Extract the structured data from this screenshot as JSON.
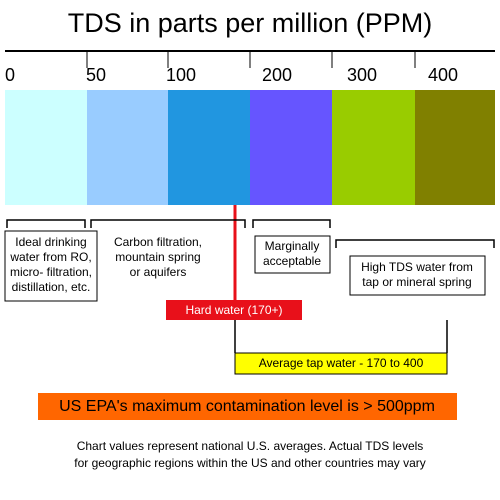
{
  "header": {
    "title": "TDS in parts per million (PPM)"
  },
  "scale": {
    "labels": [
      "0",
      "50",
      "100",
      "200",
      "300",
      "400"
    ]
  },
  "notes": {
    "ideal": [
      "Ideal drinking",
      "water from RO,",
      "micro- filtration,",
      "distillation, etc."
    ],
    "carbon": [
      "Carbon filtration,",
      "mountain spring",
      "or aquifers"
    ],
    "marginal": [
      "Marginally",
      "acceptable"
    ],
    "high": [
      "High TDS water from",
      "tap or mineral spring"
    ],
    "hard": "Hard water (170+)",
    "average": "Average tap water - 170 to 400",
    "epa": "US EPA's maximum contamination level is > 500ppm"
  },
  "footer": [
    "Chart values represent national U.S. averages. Actual TDS levels",
    "for geographic regions within the US and other countries may vary"
  ]
}
